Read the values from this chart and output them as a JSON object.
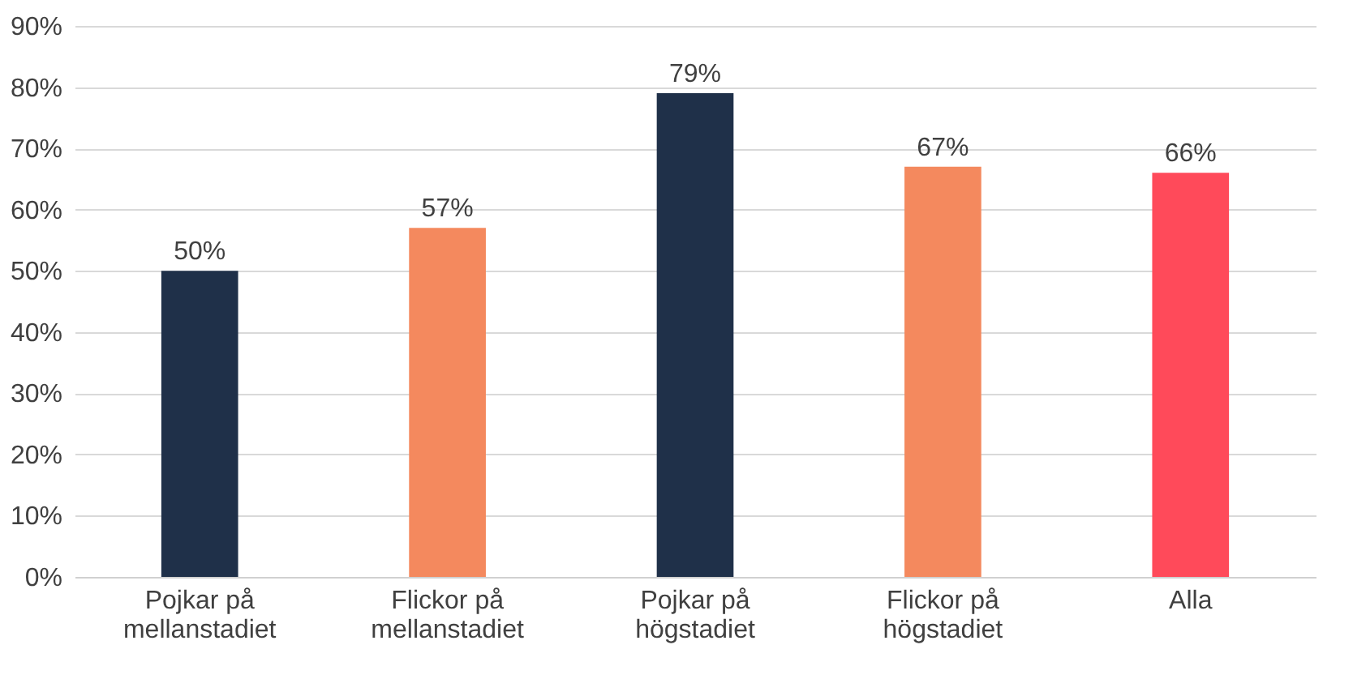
{
  "chart_data": {
    "type": "bar",
    "categories": [
      "Pojkar på mellanstadiet",
      "Flickor på mellanstadiet",
      "Pojkar på högstadiet",
      "Flickor på högstadiet",
      "Alla"
    ],
    "values": [
      50,
      57,
      79,
      67,
      66
    ],
    "colors": [
      "#1f3049",
      "#f4895e",
      "#1f3049",
      "#f4895e",
      "#ff4a5a"
    ],
    "value_labels": [
      "50%",
      "57%",
      "79%",
      "67%",
      "66%"
    ],
    "ylim": [
      0,
      90
    ],
    "yticks": [
      {
        "value": 0,
        "label": "0%"
      },
      {
        "value": 10,
        "label": "10%"
      },
      {
        "value": 20,
        "label": "20%"
      },
      {
        "value": 30,
        "label": "30%"
      },
      {
        "value": 40,
        "label": "40%"
      },
      {
        "value": 50,
        "label": "50%"
      },
      {
        "value": 60,
        "label": "60%"
      },
      {
        "value": 70,
        "label": "70%"
      },
      {
        "value": 80,
        "label": "80%"
      },
      {
        "value": 90,
        "label": "90%"
      }
    ],
    "grid": "y",
    "legend": false
  }
}
